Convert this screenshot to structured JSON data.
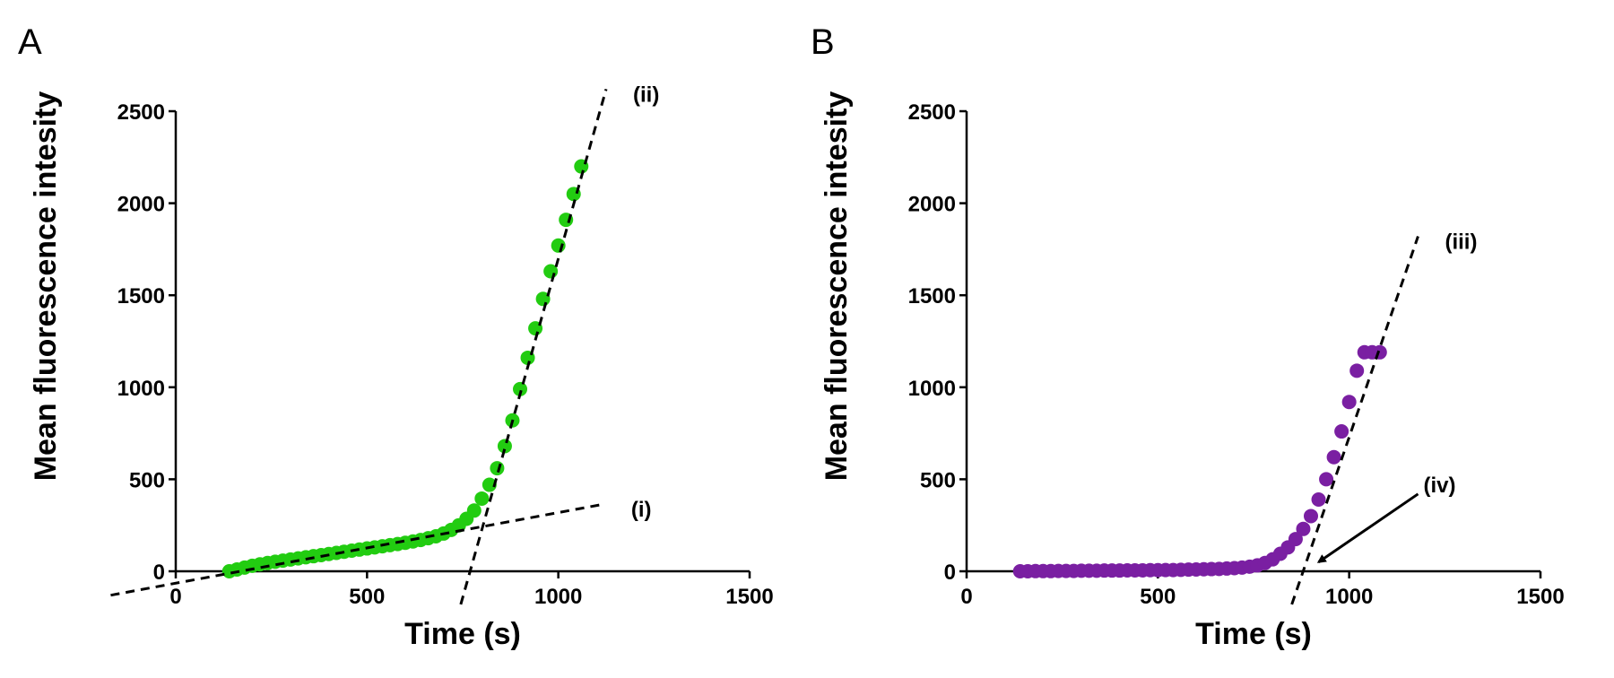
{
  "chart_data": [
    {
      "panel": "A",
      "type": "scatter",
      "xlabel": "Time (s)",
      "ylabel": "Mean fluorescence intesity",
      "xlim": [
        0,
        1500
      ],
      "ylim": [
        0,
        2500
      ],
      "xticks": [
        0,
        500,
        1000,
        1500
      ],
      "yticks": [
        0,
        500,
        1000,
        1500,
        2000,
        2500
      ],
      "marker_color": "#22cc11",
      "series": [
        {
          "x": [
            140,
            160,
            180,
            200,
            220,
            240,
            260,
            280,
            300,
            320,
            340,
            360,
            380,
            400,
            420,
            440,
            460,
            480,
            500,
            520,
            540,
            560,
            580,
            600,
            620,
            640,
            660,
            680,
            700,
            720,
            740,
            760,
            780,
            800,
            820,
            840,
            860,
            880,
            900,
            920,
            940,
            960,
            980,
            1000,
            1020,
            1040,
            1060
          ],
          "y": [
            0,
            10,
            20,
            30,
            38,
            45,
            52,
            58,
            64,
            70,
            76,
            82,
            88,
            94,
            100,
            106,
            112,
            118,
            124,
            130,
            136,
            142,
            148,
            155,
            162,
            170,
            180,
            190,
            205,
            225,
            250,
            285,
            330,
            395,
            470,
            560,
            680,
            820,
            990,
            1160,
            1320,
            1480,
            1630,
            1770,
            1910,
            2050,
            2200
          ]
        }
      ],
      "fit_lines": [
        {
          "label": "(i)",
          "x": [
            -170,
            1120
          ],
          "y": [
            -130,
            365
          ]
        },
        {
          "label": "(ii)",
          "x": [
            745,
            1125
          ],
          "y": [
            -180,
            2620
          ]
        }
      ]
    },
    {
      "panel": "B",
      "type": "scatter",
      "xlabel": "Time (s)",
      "ylabel": "Mean fluorescence intesity",
      "xlim": [
        0,
        1500
      ],
      "ylim": [
        0,
        2500
      ],
      "xticks": [
        0,
        500,
        1000,
        1500
      ],
      "yticks": [
        0,
        500,
        1000,
        1500,
        2000,
        2500
      ],
      "marker_color": "#7a1fa2",
      "series": [
        {
          "x": [
            140,
            160,
            180,
            200,
            220,
            240,
            260,
            280,
            300,
            320,
            340,
            360,
            380,
            400,
            420,
            440,
            460,
            480,
            500,
            520,
            540,
            560,
            580,
            600,
            620,
            640,
            660,
            680,
            700,
            720,
            740,
            760,
            780,
            800,
            820,
            840,
            860,
            880,
            900,
            920,
            940,
            960,
            980,
            1000,
            1020,
            1040,
            1060,
            1080
          ],
          "y": [
            0,
            0,
            1,
            1,
            1,
            2,
            2,
            2,
            3,
            3,
            3,
            4,
            4,
            4,
            5,
            5,
            5,
            6,
            6,
            7,
            7,
            8,
            9,
            10,
            11,
            12,
            13,
            15,
            17,
            20,
            25,
            32,
            45,
            65,
            95,
            130,
            175,
            230,
            300,
            390,
            500,
            620,
            760,
            920,
            1090,
            1190,
            1190,
            1190
          ]
        }
      ],
      "fit_lines": [
        {
          "label": "(iii)",
          "x": [
            850,
            1180
          ],
          "y": [
            -180,
            1820
          ]
        }
      ],
      "annotations": [
        {
          "label": "(iv)",
          "arrow_from": [
            1180,
            420
          ],
          "arrow_to": [
            920,
            50
          ]
        }
      ]
    }
  ]
}
